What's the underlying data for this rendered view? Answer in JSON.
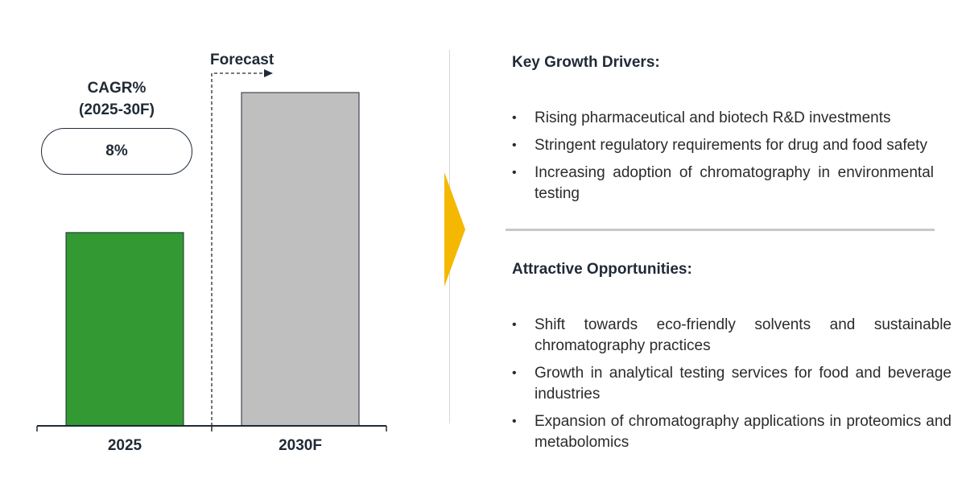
{
  "chart_data": {
    "type": "bar",
    "categories": [
      "2025",
      "2030F"
    ],
    "values": [
      0.58,
      1.0
    ],
    "value_note": "relative bar heights estimated (no y-axis shown)",
    "bar_colors": [
      "#339933",
      "#bfbfbf"
    ],
    "annotations": {
      "cagr_title_line1": "CAGR%",
      "cagr_title_line2": "(2025-30F)",
      "cagr_value": "8%",
      "forecast_label": "Forecast"
    }
  },
  "arrow_color": "#f5b800",
  "drivers": {
    "title": "Key Growth Drivers:",
    "items": [
      "Rising pharmaceutical and biotech R&D investments",
      "Stringent regulatory requirements for drug and food safety",
      "Increasing adoption of chromatography in environmental testing"
    ]
  },
  "opportunities": {
    "title": "Attractive Opportunities:",
    "items": [
      "Shift towards eco-friendly solvents and sustainable chromatography practices",
      "Growth in analytical testing services for food and beverage industries",
      "Expansion of chromatography applications in proteomics and metabolomics"
    ]
  },
  "bullet_char": "•"
}
